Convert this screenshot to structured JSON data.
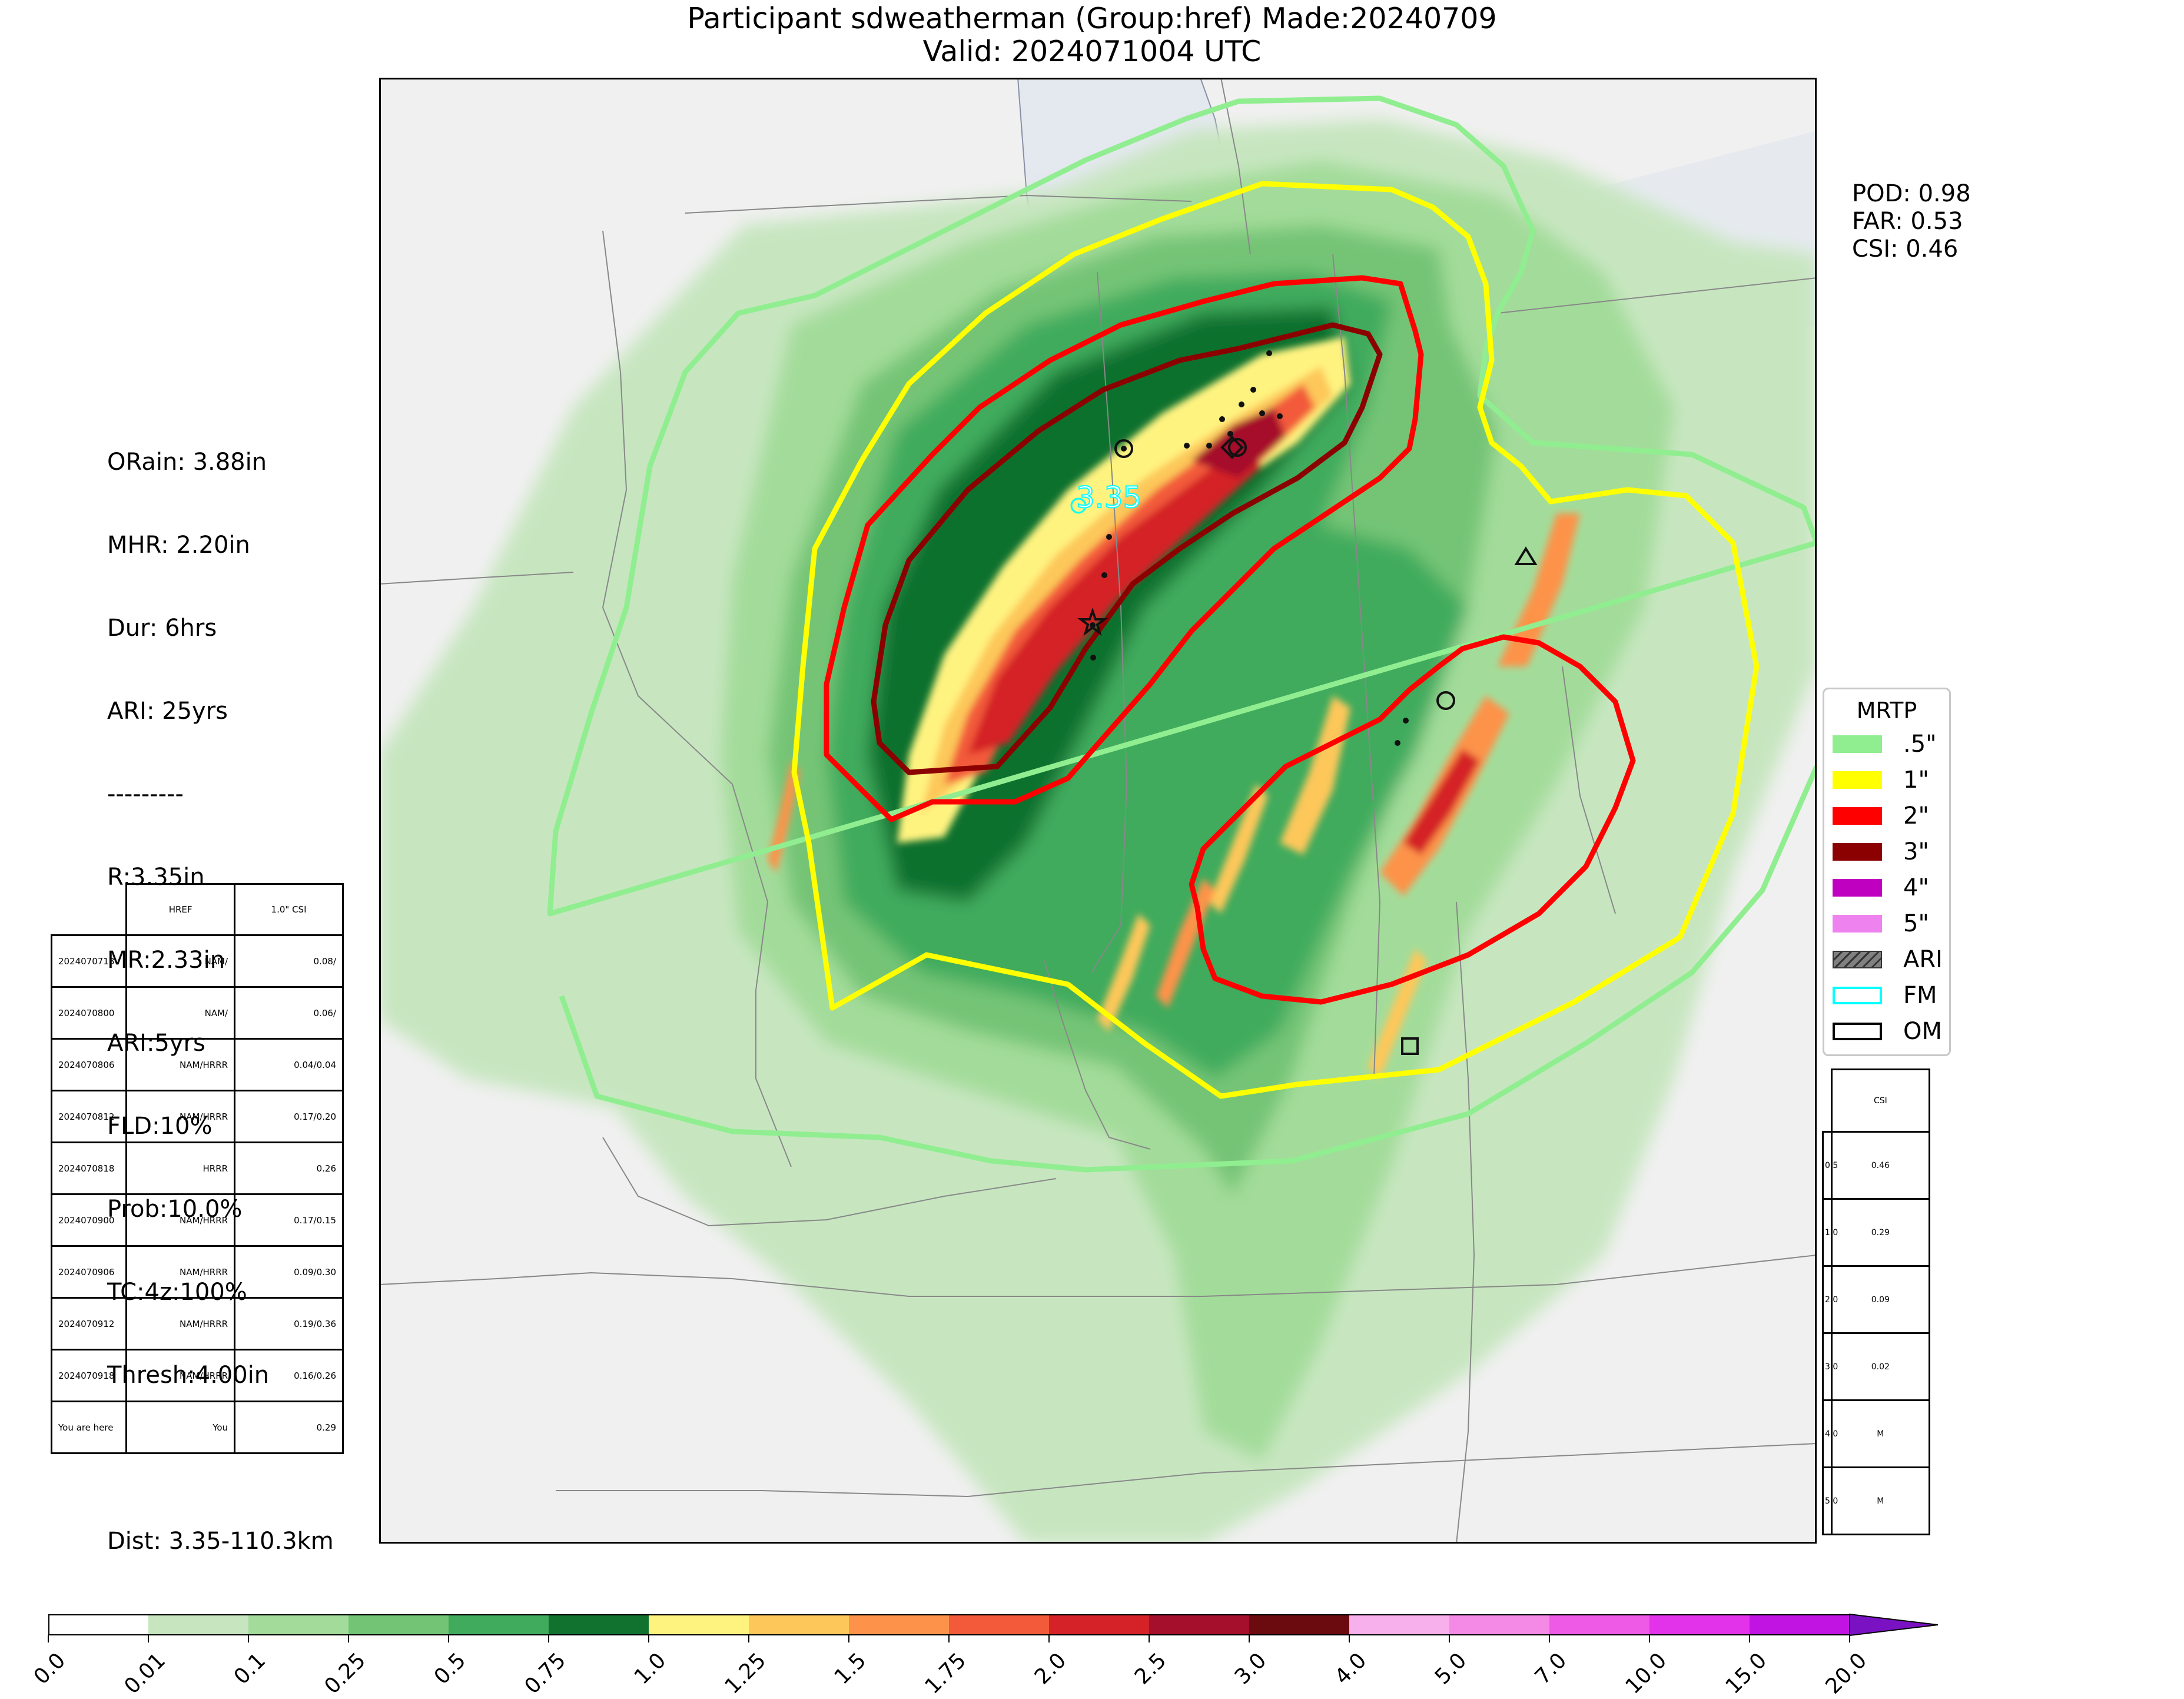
{
  "header": {
    "title_line1": "Participant sdweatherman (Group:href) Made:20240709",
    "title_line2": "Valid: 2024071004 UTC"
  },
  "verification": {
    "pod": "POD: 0.98",
    "far": "FAR: 0.53",
    "csi": "CSI: 0.46"
  },
  "event_summary": {
    "lines": [
      "ORain: 3.88in",
      "MHR: 2.20in",
      "Dur: 6hrs",
      "ARI: 25yrs",
      "---------",
      "R:3.35in",
      "MR:2.33in",
      "ARI:5yrs",
      "FLD:10%",
      "Prob:10.0%",
      "TC:4z:100%",
      "Thresh:4.00in",
      "",
      "Dist: 3.35-110.3km"
    ]
  },
  "forecast_max_label": "3.35",
  "history_table": {
    "headers": [
      "",
      "HREF",
      "1.0\" CSI"
    ],
    "rows": [
      [
        "2024070718",
        "NAM/",
        "0.08/"
      ],
      [
        "2024070800",
        "NAM/",
        "0.06/"
      ],
      [
        "2024070806",
        "NAM/HRRR",
        "0.04/0.04"
      ],
      [
        "2024070812",
        "NAM/HRRR",
        "0.17/0.20"
      ],
      [
        "2024070818",
        "HRRR",
        "0.26"
      ],
      [
        "2024070900",
        "NAM/HRRR",
        "0.17/0.15"
      ],
      [
        "2024070906",
        "NAM/HRRR",
        "0.09/0.30"
      ],
      [
        "2024070912",
        "NAM/HRRR",
        "0.19/0.36"
      ],
      [
        "2024070918",
        "NAM/HRRR",
        "0.16/0.26"
      ],
      [
        "You are here",
        "You",
        "0.29"
      ]
    ]
  },
  "threshold_csi_table": {
    "header": "CSI",
    "rows": [
      {
        "threshold": "0.5",
        "csi": "0.46"
      },
      {
        "threshold": "1.0",
        "csi": "0.29"
      },
      {
        "threshold": "2.0",
        "csi": "0.09"
      },
      {
        "threshold": "3.0",
        "csi": "0.02"
      },
      {
        "threshold": "4.0",
        "csi": "M"
      },
      {
        "threshold": "5.0",
        "csi": "M"
      }
    ]
  },
  "legend": {
    "title": "MRTP",
    "items": [
      {
        "label": ".5\"",
        "color": "#90ee90",
        "style": "fill"
      },
      {
        "label": "1\"",
        "color": "#ffff00",
        "style": "fill"
      },
      {
        "label": "2\"",
        "color": "#ff0000",
        "style": "fill"
      },
      {
        "label": "3\"",
        "color": "#8b0000",
        "style": "fill"
      },
      {
        "label": "4\"",
        "color": "#c000c0",
        "style": "fill"
      },
      {
        "label": "5\"",
        "color": "#ee82ee",
        "style": "fill"
      },
      {
        "label": "ARI",
        "color": "#808080",
        "style": "hatch"
      },
      {
        "label": "FM",
        "color": "#00ffff",
        "style": "outline"
      },
      {
        "label": "OM",
        "color": "#000000",
        "style": "outline"
      }
    ]
  },
  "colorbar": {
    "ticks": [
      "0.0",
      "0.01",
      "0.1",
      "0.25",
      "0.5",
      "0.75",
      "1.0",
      "1.25",
      "1.5",
      "1.75",
      "2.0",
      "2.5",
      "3.0",
      "4.0",
      "5.0",
      "7.0",
      "10.0",
      "15.0",
      "20.0"
    ],
    "colors": [
      "#ffffff",
      "#c7e6c0",
      "#a3dc9a",
      "#74c476",
      "#41ab5d",
      "#11712f",
      "#fff380",
      "#fdc75a",
      "#fd934a",
      "#f25a3a",
      "#d42228",
      "#a50f2c",
      "#6b0b10",
      "#f7b0ec",
      "#f48ae6",
      "#ee59e6",
      "#e232ea",
      "#c114e2",
      "#7a12c3"
    ]
  },
  "map_colors": {
    "land": "#f0f0f0",
    "lake": "#e4e8ef",
    "border": "#888888"
  }
}
